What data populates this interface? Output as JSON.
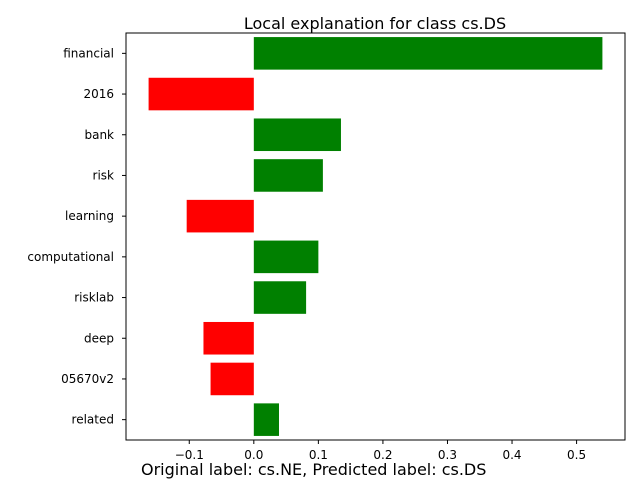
{
  "chart_data": {
    "type": "bar",
    "orientation": "horizontal",
    "title": "Local explanation for class cs.DS",
    "xlabel": "",
    "ylabel": "",
    "categories": [
      "financial",
      "2016",
      "bank",
      "risk",
      "learning",
      "computational",
      "risklab",
      "deep",
      "05670v2",
      "related"
    ],
    "values": [
      0.54,
      -0.163,
      0.135,
      0.107,
      -0.104,
      0.1,
      0.081,
      -0.078,
      -0.067,
      0.039
    ],
    "xlim": [
      -0.198,
      0.575
    ],
    "xticks": [
      -0.1,
      0.0,
      0.1,
      0.2,
      0.3,
      0.4,
      0.5
    ],
    "xtick_labels": [
      "−0.1",
      "0.0",
      "0.1",
      "0.2",
      "0.3",
      "0.4",
      "0.5"
    ],
    "grid": false,
    "legend": "none",
    "colors": {
      "positive": "#008000",
      "negative": "#ff0000",
      "axis": "#000000"
    }
  },
  "footer": {
    "text": "Original label: cs.NE, Predicted label: cs.DS"
  }
}
